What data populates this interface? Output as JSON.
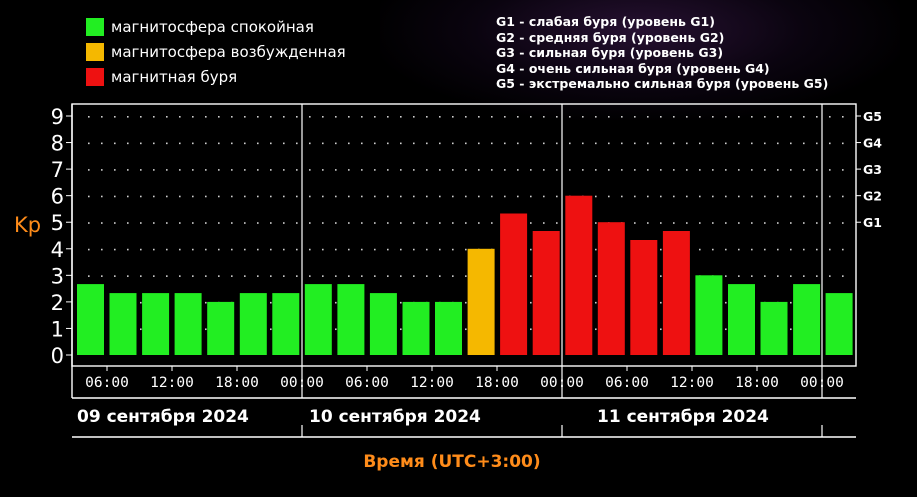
{
  "legend": {
    "items": [
      {
        "label": "магнитосфера спокойная",
        "color": "#22ee22"
      },
      {
        "label": "магнитосфера возбужденная",
        "color": "#f5b800"
      },
      {
        "label": "магнитная буря",
        "color": "#ee1111"
      }
    ],
    "storm_levels": [
      "G1 - слабая буря (уровень G1)",
      "G2 - средняя буря (уровень G2)",
      "G3 - сильная буря (уровень G3)",
      "G4 - очень сильная буря (уровень G4)",
      "G5 - экстремально сильная буря (уровень G5)"
    ]
  },
  "colors": {
    "background": "#000000",
    "axis": "#ffffff",
    "accent_orange": "#ff8c1a",
    "quiet": "#22ee22",
    "disturbed": "#f5b800",
    "storm": "#ee1111"
  },
  "chart_data": {
    "type": "bar",
    "ylabel": "Kp",
    "xlabel": "Время (UTC+3:00)",
    "ylim": [
      0,
      9
    ],
    "yticks": [
      "0",
      "1",
      "2",
      "3",
      "4",
      "5",
      "6",
      "7",
      "8",
      "9"
    ],
    "right_ticks": [
      {
        "label": "G1",
        "y": 5
      },
      {
        "label": "G2",
        "y": 6
      },
      {
        "label": "G3",
        "y": 7
      },
      {
        "label": "G4",
        "y": 8
      },
      {
        "label": "G5",
        "y": 9
      }
    ],
    "x_tick_labels": [
      "06:00",
      "12:00",
      "18:00",
      "00:00",
      "06:00",
      "12:00",
      "18:00",
      "00:00",
      "06:00",
      "12:00",
      "18:00",
      "00:00"
    ],
    "days": [
      "09 сентября 2024",
      "10 сентября 2024",
      "11 сентября 2024"
    ],
    "grid": true,
    "values": [
      2.67,
      2.33,
      2.33,
      2.33,
      2.0,
      2.33,
      2.33,
      2.67,
      2.67,
      2.33,
      2.0,
      2.0,
      4.0,
      5.33,
      4.67,
      6.0,
      5.0,
      4.33,
      4.67,
      3.0,
      2.67,
      2.0,
      2.67,
      2.33
    ],
    "levels": [
      "quiet",
      "quiet",
      "quiet",
      "quiet",
      "quiet",
      "quiet",
      "quiet",
      "quiet",
      "quiet",
      "quiet",
      "quiet",
      "quiet",
      "disturbed",
      "storm",
      "storm",
      "storm",
      "storm",
      "storm",
      "storm",
      "quiet",
      "quiet",
      "quiet",
      "quiet",
      "quiet"
    ]
  }
}
